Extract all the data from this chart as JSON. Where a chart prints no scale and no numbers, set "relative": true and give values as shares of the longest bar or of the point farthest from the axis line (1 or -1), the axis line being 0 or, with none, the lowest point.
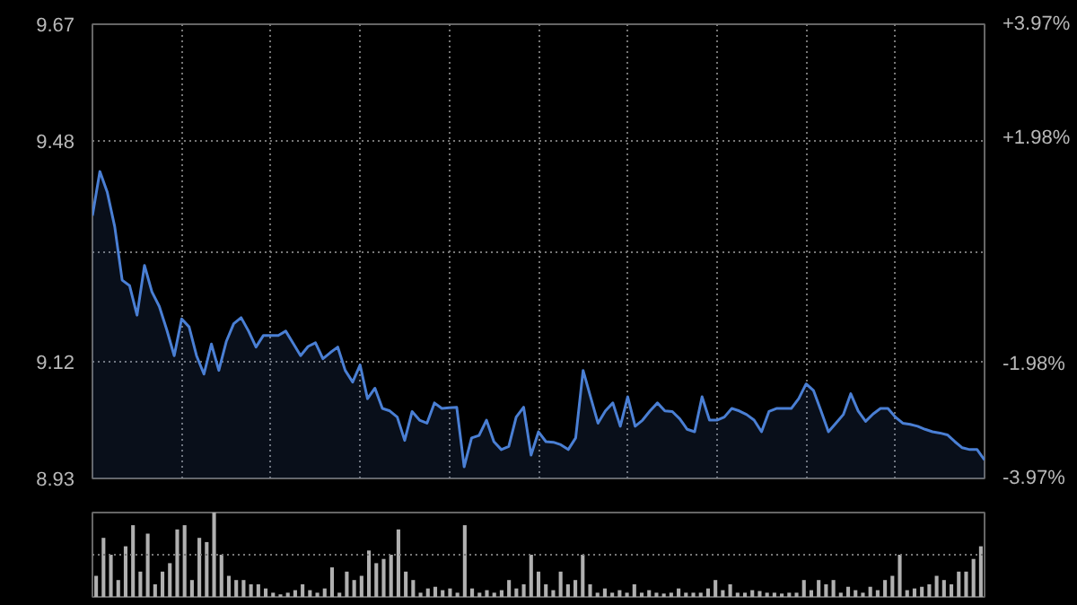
{
  "chart_data": [
    {
      "type": "area",
      "categories": [
        null,
        null,
        null,
        null,
        null,
        null,
        null,
        null,
        null,
        null,
        null,
        null,
        null,
        null,
        null,
        null,
        null,
        null,
        null,
        null,
        null,
        null,
        null,
        null,
        null,
        null,
        null,
        null,
        null,
        null,
        null,
        null,
        null,
        null,
        null,
        null,
        null,
        null,
        null,
        null,
        null,
        null,
        null,
        null,
        null,
        null,
        null,
        null,
        null,
        null,
        null,
        null,
        null,
        null,
        null,
        null,
        null,
        null,
        null,
        null,
        null,
        null,
        null,
        null,
        null,
        null,
        null,
        null,
        null,
        null,
        null,
        null,
        null,
        null,
        null,
        null,
        null,
        null,
        null,
        null,
        null,
        null,
        null,
        null,
        null,
        null,
        null,
        null,
        null,
        null,
        null,
        null,
        null,
        null,
        null,
        null,
        null,
        null,
        null,
        null,
        null,
        null,
        null,
        null,
        null,
        null,
        null,
        null,
        null,
        null,
        null,
        null,
        null,
        null,
        null,
        null,
        null,
        null,
        null,
        null,
        null
      ],
      "series": [
        {
          "color": "#4a7fd4",
          "values": [
            9.358,
            9.43,
            9.396,
            9.34,
            9.253,
            9.244,
            9.196,
            9.277,
            9.234,
            9.21,
            9.172,
            9.13,
            9.19,
            9.177,
            9.13,
            9.1,
            9.149,
            9.106,
            9.153,
            9.182,
            9.192,
            9.17,
            9.144,
            9.163,
            9.163,
            9.163,
            9.17,
            9.15,
            9.13,
            9.145,
            9.151,
            9.125,
            9.135,
            9.144,
            9.106,
            9.087,
            9.115,
            9.06,
            9.077,
            9.044,
            9.04,
            9.03,
            8.992,
            9.039,
            9.025,
            9.02,
            9.053,
            9.044,
            9.045,
            9.046,
            8.949,
            8.996,
            9.0,
            9.025,
            8.99,
            8.977,
            8.982,
            9.03,
            9.046,
            8.968,
            9.006,
            8.99,
            8.989,
            8.985,
            8.977,
            8.996,
            9.106,
            9.063,
            9.02,
            9.04,
            9.053,
            9.015,
            9.063,
            9.015,
            9.025,
            9.04,
            9.053,
            9.04,
            9.039,
            9.027,
            9.01,
            9.006,
            9.063,
            9.025,
            9.025,
            9.03,
            9.044,
            9.04,
            9.034,
            9.025,
            9.006,
            9.039,
            9.044,
            9.044,
            9.044,
            9.06,
            9.084,
            9.073,
            9.04,
            9.006,
            9.02,
            9.034,
            9.068,
            9.04,
            9.023,
            9.035,
            9.044,
            9.044,
            9.03,
            9.02,
            9.018,
            9.015,
            9.01,
            9.006,
            9.004,
            9.001,
            8.99,
            8.98,
            8.977,
            8.977,
            8.96
          ]
        }
      ],
      "ylim": [
        8.93,
        9.67
      ],
      "yticks": [
        8.93,
        9.12,
        {
          "value": 9.3,
          "label": null
        },
        9.48,
        9.67
      ],
      "y2lim": [
        -3.97,
        3.97
      ],
      "y2ticks": [
        {
          "value": -3.97,
          "label": "-3.97%"
        },
        {
          "value": -1.98,
          "label": "-1.98%"
        },
        {
          "value": 1.98,
          "label": "+1.98%"
        },
        {
          "value": 3.97,
          "label": "+3.97%"
        }
      ],
      "grid": true,
      "tick_labels": "y"
    },
    {
      "type": "bar",
      "relative": true,
      "color": "#b0b0b0",
      "ref_lines": [
        {
          "axis": "y",
          "value": 0.5,
          "color": "#777777",
          "line_style": "dotted"
        }
      ],
      "categories": [
        null,
        null,
        null,
        null,
        null,
        null,
        null,
        null,
        null,
        null,
        null,
        null,
        null,
        null,
        null,
        null,
        null,
        null,
        null,
        null,
        null,
        null,
        null,
        null,
        null,
        null,
        null,
        null,
        null,
        null,
        null,
        null,
        null,
        null,
        null,
        null,
        null,
        null,
        null,
        null,
        null,
        null,
        null,
        null,
        null,
        null,
        null,
        null,
        null,
        null,
        null,
        null,
        null,
        null,
        null,
        null,
        null,
        null,
        null,
        null,
        null,
        null,
        null,
        null,
        null,
        null,
        null,
        null,
        null,
        null,
        null,
        null,
        null,
        null,
        null,
        null,
        null,
        null,
        null,
        null,
        null,
        null,
        null,
        null,
        null,
        null,
        null,
        null,
        null,
        null,
        null,
        null,
        null,
        null,
        null,
        null,
        null,
        null,
        null,
        null,
        null,
        null,
        null,
        null,
        null,
        null,
        null,
        null,
        null,
        null,
        null,
        null,
        null,
        null,
        null,
        null,
        null,
        null,
        null,
        null,
        null
      ],
      "values": [
        0.25,
        0.7,
        0.5,
        0.2,
        0.6,
        0.85,
        0.3,
        0.75,
        0.15,
        0.3,
        0.4,
        0.8,
        0.85,
        0.2,
        0.7,
        0.65,
        1.0,
        0.5,
        0.25,
        0.2,
        0.2,
        0.15,
        0.15,
        0.1,
        0.05,
        0.03,
        0.05,
        0.08,
        0.15,
        0.08,
        0.05,
        0.1,
        0.35,
        0.05,
        0.3,
        0.2,
        0.25,
        0.55,
        0.4,
        0.45,
        0.5,
        0.8,
        0.3,
        0.2,
        0.05,
        0.1,
        0.12,
        0.08,
        0.1,
        0.05,
        0.85,
        0.1,
        0.05,
        0.08,
        0.05,
        0.08,
        0.2,
        0.1,
        0.15,
        0.5,
        0.3,
        0.15,
        0.08,
        0.3,
        0.15,
        0.2,
        0.5,
        0.15,
        0.05,
        0.1,
        0.05,
        0.08,
        0.05,
        0.15,
        0.05,
        0.08,
        0.05,
        0.04,
        0.05,
        0.1,
        0.05,
        0.05,
        0.05,
        0.1,
        0.2,
        0.08,
        0.15,
        0.05,
        0.05,
        0.08,
        0.07,
        0.05,
        0.05,
        0.04,
        0.05,
        0.05,
        0.2,
        0.08,
        0.2,
        0.15,
        0.2,
        0.05,
        0.12,
        0.08,
        0.05,
        0.12,
        0.08,
        0.2,
        0.25,
        0.5,
        0.08,
        0.1,
        0.12,
        0.15,
        0.25,
        0.2,
        0.15,
        0.3,
        0.3,
        0.45,
        0.6
      ]
    }
  ]
}
